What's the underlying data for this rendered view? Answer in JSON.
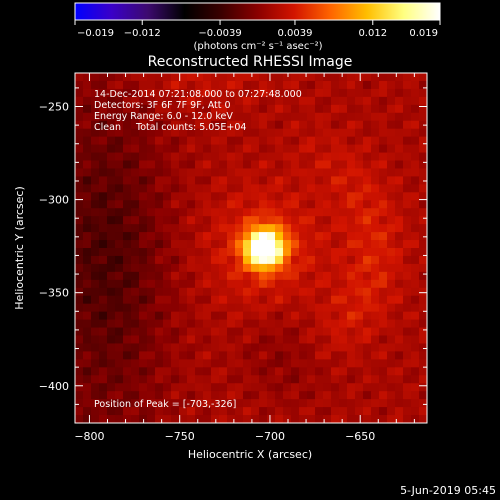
{
  "colorbar": {
    "min": -0.019,
    "max": 0.019,
    "ticks": [
      "-0.019",
      "-0.012",
      "-0.0039",
      "0.0039",
      "0.012",
      "0.019"
    ],
    "unit_label": "(photons cm⁻² s⁻¹ asec⁻²)",
    "colormap": [
      "#0000ff",
      "#3a00c8",
      "#3c0a6e",
      "#000000",
      "#3a0000",
      "#8a0000",
      "#d21400",
      "#ff6400",
      "#ffbe00",
      "#ffff80",
      "#ffffff"
    ]
  },
  "chart_data": {
    "type": "heatmap",
    "title": "Reconstructed RHESSI Image",
    "xlabel": "Heliocentric X (arcsec)",
    "ylabel": "Heliocentric Y (arcsec)",
    "xlim": [
      -808,
      -613
    ],
    "ylim": [
      -420,
      -232
    ],
    "xticks": [
      -800,
      -750,
      -700,
      -650
    ],
    "yticks": [
      -250,
      -300,
      -350,
      -400
    ],
    "xtick_labels": [
      "−800",
      "−750",
      "−700",
      "−650"
    ],
    "ytick_labels": [
      "−250",
      "−300",
      "−350",
      "−400"
    ],
    "peak": {
      "x": -703,
      "y": -326
    },
    "annotations": [
      "14-Dec-2014 07:21:08.000 to 07:27:48.000",
      "Detectors: 3F 6F 7F 9F, Att 0",
      "Energy Range: 6.0 - 12.0 keV",
      "Clean     Total counts: 5.05E+04"
    ],
    "peak_label": "Position of Peak = [-703,-326]"
  },
  "footer": {
    "timestamp": "5-Jun-2019 05:45"
  }
}
